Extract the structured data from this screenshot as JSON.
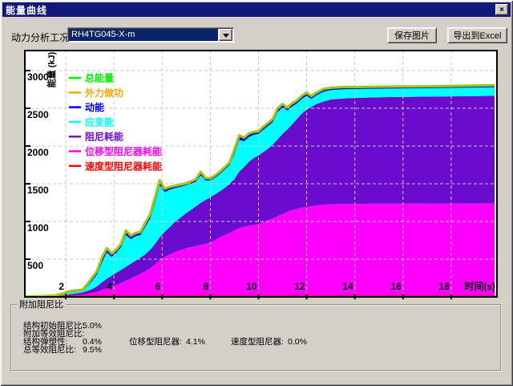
{
  "window": {
    "title": "能量曲线",
    "close_glyph": "×"
  },
  "toolbar": {
    "case_label": "动力分析工况",
    "case_value": "RH4TG045-X-m",
    "save_button": "保存图片",
    "export_button": "导出到Excel"
  },
  "chart_data": {
    "type": "area",
    "stacked": true,
    "xlabel": "时间(s)",
    "ylabel": "能量 (kJ)",
    "xlim": [
      0.3,
      19.9
    ],
    "ylim": [
      0,
      3265
    ],
    "xticks": [
      2,
      4,
      6,
      8,
      10,
      12,
      14,
      16,
      18
    ],
    "yticks": [
      500,
      1000,
      1500,
      2000,
      2500,
      3000
    ],
    "grid": "dashed",
    "grid_color": "#c9c9c9",
    "legend_position": "top-left-inside",
    "colors": {
      "total_energy": "#00EE00",
      "external_work": "#FFA500",
      "kinetic": "#0000EE",
      "strain": "#00FFFF",
      "damping": "#6A0BCD",
      "displacement_damper": "#FF00FF",
      "velocity_damper": "#FF0000"
    },
    "legend": [
      {
        "label": "总能量",
        "color_key": "total_energy"
      },
      {
        "label": "外力做功",
        "color_key": "external_work"
      },
      {
        "label": "动能",
        "color_key": "kinetic"
      },
      {
        "label": "应变能",
        "color_key": "strain"
      },
      {
        "label": "阻尼耗能",
        "color_key": "damping"
      },
      {
        "label": "位移型阻尼器耗能",
        "color_key": "displacement_damper"
      },
      {
        "label": "速度型阻尼器耗能",
        "color_key": "velocity_damper"
      }
    ],
    "t": [
      0.3,
      0.8,
      1.2,
      1.6,
      1.9,
      2.1,
      2.4,
      2.7,
      2.9,
      3.1,
      3.3,
      3.5,
      3.7,
      3.9,
      4.1,
      4.3,
      4.5,
      4.7,
      4.9,
      5.1,
      5.3,
      5.5,
      5.7,
      5.9,
      6.1,
      6.3,
      6.5,
      6.8,
      7.0,
      7.2,
      7.4,
      7.6,
      7.8,
      8.0,
      8.2,
      8.4,
      8.6,
      8.8,
      9.0,
      9.2,
      9.4,
      9.6,
      9.8,
      10.0,
      10.2,
      10.4,
      10.6,
      10.8,
      11.0,
      11.2,
      11.4,
      11.6,
      11.8,
      12.0,
      12.2,
      12.4,
      12.7,
      13.0,
      13.5,
      14.0,
      15.0,
      16.0,
      17.0,
      18.0,
      19.0,
      19.8
    ],
    "boundaries": {
      "displacement_damper_top": [
        0,
        0,
        0,
        2,
        8,
        14,
        22,
        30,
        40,
        52,
        68,
        92,
        115,
        138,
        160,
        185,
        215,
        245,
        275,
        305,
        340,
        380,
        430,
        490,
        530,
        560,
        590,
        625,
        645,
        660,
        675,
        690,
        705,
        720,
        755,
        790,
        820,
        850,
        880,
        910,
        930,
        945,
        955,
        965,
        990,
        1015,
        1040,
        1070,
        1100,
        1125,
        1150,
        1168,
        1182,
        1192,
        1202,
        1212,
        1222,
        1228,
        1232,
        1234,
        1236,
        1237,
        1238,
        1239,
        1240,
        1240
      ],
      "damping_top": [
        1,
        3,
        5,
        8,
        20,
        32,
        45,
        60,
        80,
        105,
        140,
        195,
        240,
        280,
        320,
        360,
        400,
        440,
        480,
        520,
        565,
        625,
        700,
        790,
        860,
        920,
        985,
        1060,
        1110,
        1155,
        1200,
        1245,
        1285,
        1320,
        1360,
        1400,
        1445,
        1495,
        1560,
        1660,
        1720,
        1790,
        1840,
        1875,
        1920,
        1965,
        2020,
        2090,
        2160,
        2220,
        2290,
        2360,
        2430,
        2480,
        2520,
        2555,
        2590,
        2615,
        2630,
        2638,
        2645,
        2650,
        2655,
        2658,
        2662,
        2665
      ],
      "strain_top": [
        2,
        5,
        8,
        14,
        35,
        55,
        70,
        82,
        140,
        215,
        300,
        455,
        590,
        530,
        585,
        660,
        820,
        765,
        805,
        820,
        930,
        1035,
        1240,
        1480,
        1390,
        1420,
        1440,
        1462,
        1480,
        1500,
        1528,
        1610,
        1545,
        1542,
        1580,
        1628,
        1688,
        1745,
        1890,
        2080,
        2060,
        2120,
        2148,
        2160,
        2215,
        2265,
        2320,
        2450,
        2510,
        2470,
        2525,
        2565,
        2625,
        2665,
        2625,
        2670,
        2720,
        2740,
        2752,
        2755,
        2760,
        2763,
        2765,
        2770,
        2775,
        2780
      ],
      "total_top": [
        4,
        8,
        12,
        20,
        45,
        70,
        85,
        95,
        170,
        255,
        345,
        520,
        645,
        575,
        625,
        705,
        880,
        810,
        845,
        860,
        980,
        1090,
        1310,
        1545,
        1430,
        1455,
        1470,
        1490,
        1505,
        1530,
        1560,
        1655,
        1575,
        1570,
        1610,
        1660,
        1720,
        1780,
        1950,
        2140,
        2110,
        2165,
        2185,
        2195,
        2255,
        2305,
        2360,
        2500,
        2555,
        2510,
        2565,
        2605,
        2665,
        2705,
        2660,
        2705,
        2755,
        2770,
        2780,
        2780,
        2785,
        2788,
        2790,
        2795,
        2800,
        2805
      ]
    },
    "velocity_damper_value": 0
  },
  "damping_panel": {
    "title": "附加阻尼比",
    "structural_initial_label": "结构初始阻尼比:",
    "structural_initial_value": "5.0%",
    "additional_equivalent_label": "附加等效阻尼比:",
    "elastoplastic_label": "结构弹塑性:",
    "elastoplastic_value": "0.4%",
    "displacement_damper_label": "位移型阻尼器:",
    "displacement_damper_value": "4.1%",
    "velocity_damper_label": "速度型阻尼器:",
    "velocity_damper_value": "0.0%",
    "total_equivalent_label": "总等效阻尼比:",
    "total_equivalent_value": "9.5%"
  }
}
